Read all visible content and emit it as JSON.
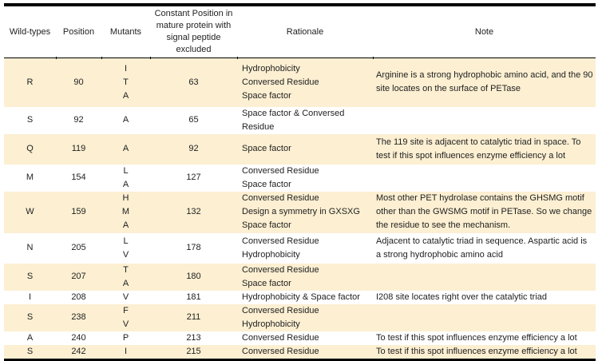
{
  "colors": {
    "row_highlight": "#fcefd2",
    "row_plain": "#ffffff",
    "border": "#000000",
    "text": "#1f1f1f"
  },
  "table": {
    "columns": [
      {
        "key": "wild_type",
        "label": "Wild-types"
      },
      {
        "key": "position",
        "label": "Position"
      },
      {
        "key": "mutants",
        "label": "Mutants"
      },
      {
        "key": "constant_position",
        "label": "Constant Position in mature protein with signal peptide excluded"
      },
      {
        "key": "rationale",
        "label": "Rationale"
      },
      {
        "key": "note",
        "label": "Note"
      }
    ],
    "rows": [
      {
        "wild_type": "R",
        "position": "90",
        "mutants": [
          "I",
          "T",
          "A"
        ],
        "constant_position": "63",
        "rationale": [
          "Hydrophobicity",
          "Conversed Residue",
          "Space factor"
        ],
        "note": "Arginine is a strong hydrophobic amino acid, and the 90 site locates on the surface of PETase"
      },
      {
        "wild_type": "S",
        "position": "92",
        "mutants": [
          "A"
        ],
        "constant_position": "65",
        "rationale": [
          "Space factor & Conversed Residue"
        ],
        "note": ""
      },
      {
        "wild_type": "Q",
        "position": "119",
        "mutants": [
          "A"
        ],
        "constant_position": "92",
        "rationale": [
          "Space factor"
        ],
        "note": "The 119 site is adjacent to catalytic triad in space. To test if this spot influences enzyme efficiency a lot"
      },
      {
        "wild_type": "M",
        "position": "154",
        "mutants": [
          "L",
          "A"
        ],
        "constant_position": "127",
        "rationale": [
          "Conversed Residue",
          "Space factor"
        ],
        "note": ""
      },
      {
        "wild_type": "W",
        "position": "159",
        "mutants": [
          "H",
          "M",
          "A"
        ],
        "constant_position": "132",
        "rationale": [
          "Conversed Residue",
          "Design a symmetry in GXSXG",
          "Space factor"
        ],
        "note": "Most other PET hydrolase contains the GHSMG motif other than the GWSMG motif in PETase. So we change the residue to see the mechanism."
      },
      {
        "wild_type": "N",
        "position": "205",
        "mutants": [
          "L",
          "V"
        ],
        "constant_position": "178",
        "rationale": [
          "Conversed Residue",
          "Hydrophobicity"
        ],
        "note": "Adjacent to catalytic triad in sequence. Aspartic acid is a strong hydrophobic amino acid"
      },
      {
        "wild_type": "S",
        "position": "207",
        "mutants": [
          "T",
          "A"
        ],
        "constant_position": "180",
        "rationale": [
          "Conversed Residue",
          "Space factor"
        ],
        "note": ""
      },
      {
        "wild_type": "I",
        "position": "208",
        "mutants": [
          "V"
        ],
        "constant_position": "181",
        "rationale": [
          "Hydrophobicity & Space factor"
        ],
        "note": "I208 site locates right over the catalytic triad"
      },
      {
        "wild_type": "S",
        "position": "238",
        "mutants": [
          "F",
          "V"
        ],
        "constant_position": "211",
        "rationale": [
          "Conversed Residue",
          "Hydrophobicity"
        ],
        "note": ""
      },
      {
        "wild_type": "A",
        "position": "240",
        "mutants": [
          "P"
        ],
        "constant_position": "213",
        "rationale": [
          "Conversed Residue"
        ],
        "note": "To test if this spot influences enzyme efficiency a lot"
      },
      {
        "wild_type": "S",
        "position": "242",
        "mutants": [
          "I"
        ],
        "constant_position": "215",
        "rationale": [
          "Conversed Residue"
        ],
        "note": "To test if this spot influences enzyme efficiency a lot"
      }
    ]
  }
}
